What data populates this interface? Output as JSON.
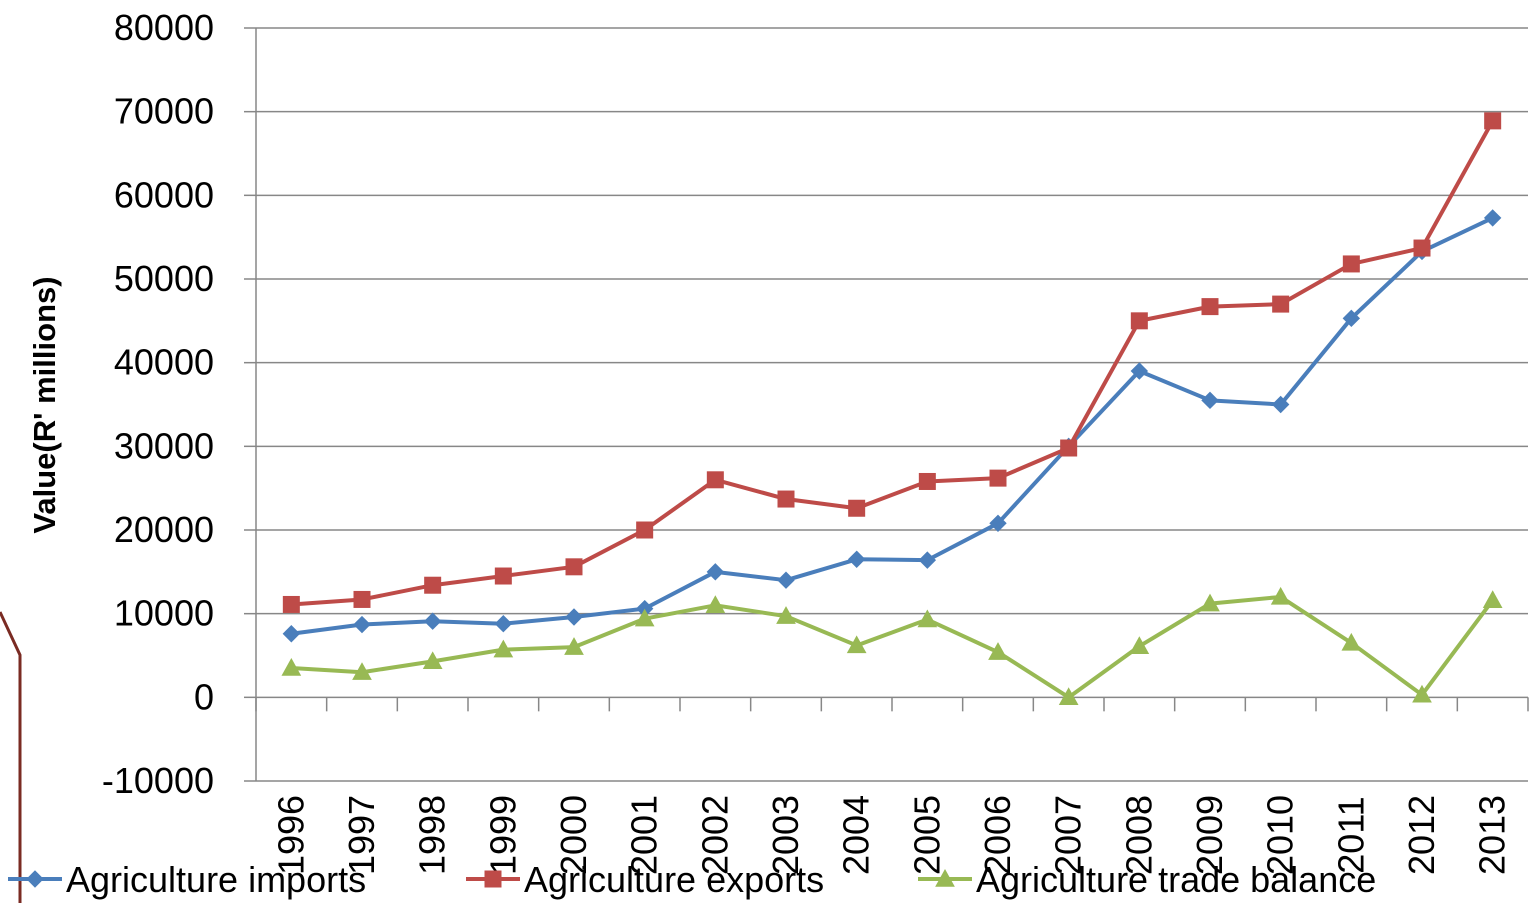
{
  "chart_data": {
    "type": "line",
    "ylabel": "Value(R' millions)",
    "ylim": [
      -10000,
      80000
    ],
    "yticks": [
      "80000",
      "70000",
      "60000",
      "50000",
      "40000",
      "30000",
      "20000",
      "10000",
      "0",
      "-10000"
    ],
    "categories": [
      "1996",
      "1997",
      "1998",
      "1999",
      "2000",
      "2001",
      "2002",
      "2003",
      "2004",
      "2005",
      "2006",
      "2007",
      "2008",
      "2009",
      "2010",
      "2011",
      "2012",
      "2013"
    ],
    "grid": "horizontal",
    "legend_position": "bottom",
    "series": [
      {
        "name": "Agriculture imports",
        "color": "#4a7ebb",
        "marker": "diamond",
        "values": [
          7600,
          8700,
          9100,
          8800,
          9600,
          10600,
          15000,
          14000,
          16500,
          16400,
          20800,
          30000,
          39000,
          35500,
          35000,
          45300,
          53300,
          57300
        ]
      },
      {
        "name": "Agriculture exports",
        "color": "#be4b48",
        "marker": "square",
        "values": [
          11100,
          11700,
          13400,
          14500,
          15600,
          20000,
          26000,
          23700,
          22600,
          25800,
          26200,
          29800,
          45000,
          46700,
          47000,
          51800,
          53700,
          68900
        ]
      },
      {
        "name": "Agriculture trade balance",
        "color": "#98b954",
        "marker": "triangle",
        "values": [
          3500,
          3000,
          4300,
          5700,
          6000,
          9400,
          11000,
          9700,
          6200,
          9300,
          5400,
          0,
          6100,
          11200,
          12000,
          6500,
          300,
          11600
        ]
      }
    ]
  }
}
